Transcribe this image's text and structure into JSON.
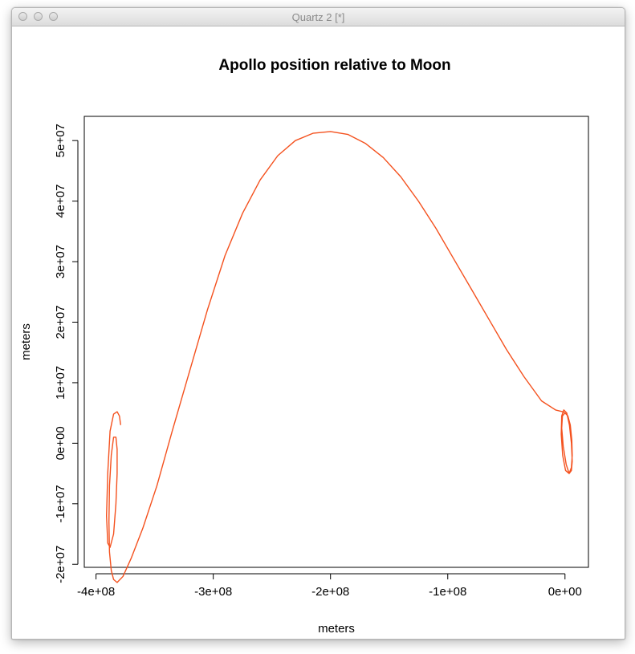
{
  "window": {
    "title": "Quartz 2 [*]"
  },
  "chart_data": {
    "type": "line",
    "title": "Apollo position relative to Moon",
    "xlabel": "meters",
    "ylabel": "meters",
    "xlim": [
      -410000000.0,
      20000000.0
    ],
    "ylim": [
      -20500000.0,
      54000000.0
    ],
    "x_ticks": [
      {
        "value": -400000000.0,
        "label": "-4e+08"
      },
      {
        "value": -300000000.0,
        "label": "-3e+08"
      },
      {
        "value": -200000000.0,
        "label": "-2e+08"
      },
      {
        "value": -100000000.0,
        "label": "-1e+08"
      },
      {
        "value": 0,
        "label": "0e+00"
      }
    ],
    "y_ticks": [
      {
        "value": -20000000.0,
        "label": "-2e+07"
      },
      {
        "value": -10000000.0,
        "label": "-1e+07"
      },
      {
        "value": 0,
        "label": "0e+00"
      },
      {
        "value": 10000000.0,
        "label": "1e+07"
      },
      {
        "value": 20000000.0,
        "label": "2e+07"
      },
      {
        "value": 30000000.0,
        "label": "3e+07"
      },
      {
        "value": 40000000.0,
        "label": "4e+07"
      },
      {
        "value": 50000000.0,
        "label": "5e+07"
      }
    ],
    "line_color": "#f4511e",
    "series": [
      {
        "x": [
          -379000000.0,
          -380000000.0,
          -382000000.0,
          -385000000.0,
          -388000000.0,
          -390000000.0,
          -391000000.0,
          -390000000.0,
          -388000000.0,
          -385000000.0,
          -383000000.0,
          -382000000.0,
          -382000000.0,
          -383000000.0,
          -385000000.0,
          -387000000.0,
          -388500000.0,
          -389000000.0,
          -388500000.0,
          -387000000.0,
          -385000000.0,
          -382000000.0,
          -377000000.0,
          -370000000.0,
          -360000000.0,
          -348000000.0,
          -335000000.0,
          -320000000.0,
          -305000000.0,
          -290000000.0,
          -275000000.0,
          -260000000.0,
          -245000000.0,
          -230000000.0,
          -215000000.0,
          -200000000.0,
          -185000000.0,
          -170000000.0,
          -155000000.0,
          -140000000.0,
          -125000000.0,
          -110000000.0,
          -95000000.0,
          -80000000.0,
          -65000000.0,
          -50000000.0,
          -35000000.0,
          -20000000.0,
          -8000000.0,
          -2000000.0,
          0.0,
          2500000.0,
          4500000.0,
          5800000.0,
          6200000.0,
          5500000.0,
          3500000.0,
          500000.0,
          -2000000.0,
          -3200000.0,
          -2800000.0,
          -1000000.0,
          1500000.0,
          3800000.0,
          5500000.0,
          6200000.0,
          5500000.0,
          3600000.0,
          1000000.0,
          -1500000.0,
          -2800000.0,
          -2200000.0,
          0.0
        ],
        "y": [
          3000000.0,
          4500000.0,
          5200000.0,
          4800000.0,
          2000000.0,
          -5000000.0,
          -12000000.0,
          -16500000.0,
          -17200000.0,
          -15000000.0,
          -10000000.0,
          -5000000.0,
          -1000000.0,
          1000000.0,
          1000000.0,
          -2000000.0,
          -7000000.0,
          -13000000.0,
          -18000000.0,
          -21000000.0,
          -22500000.0,
          -23000000.0,
          -22000000.0,
          -19000000.0,
          -14000000.0,
          -7000000.0,
          2000000.0,
          12000000.0,
          22000000.0,
          31000000.0,
          38000000.0,
          43500000.0,
          47500000.0,
          50000000.0,
          51200000.0,
          51500000.0,
          51000000.0,
          49500000.0,
          47200000.0,
          44000000.0,
          40000000.0,
          35500000.0,
          30500000.0,
          25500000.0,
          20500000.0,
          15500000.0,
          11000000.0,
          7000000.0,
          5500000.0,
          5200000.0,
          5000000.0,
          4500000.0,
          3000000.0,
          500000.0,
          -2000000.0,
          -4000000.0,
          -5000000.0,
          -4500000.0,
          -2000000.0,
          1500000.0,
          4500000.0,
          5500000.0,
          5000000.0,
          3000000.0,
          0.0,
          -3000000.0,
          -4500000.0,
          -5000000.0,
          -3500000.0,
          -500000.0,
          2500000.0,
          4500000.0,
          5000000.0
        ]
      }
    ]
  }
}
